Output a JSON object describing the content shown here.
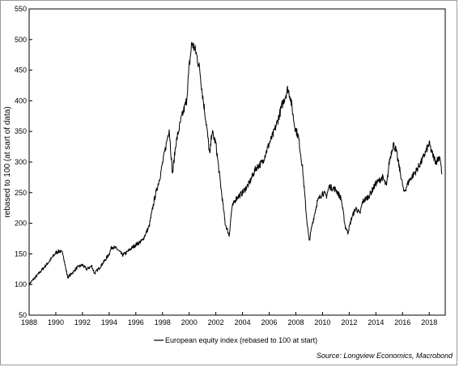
{
  "chart_data": {
    "type": "line",
    "ylabel": "rebased to 100 (at sart of data)",
    "xlabel": "",
    "ylim": [
      50,
      550
    ],
    "xlim": [
      1988,
      2019.2
    ],
    "y_ticks": [
      50,
      100,
      150,
      200,
      250,
      300,
      350,
      400,
      450,
      500,
      550
    ],
    "x_ticks": [
      1988,
      1990,
      1992,
      1994,
      1996,
      1998,
      2000,
      2002,
      2004,
      2006,
      2008,
      2010,
      2012,
      2014,
      2016,
      2018
    ],
    "grid": false,
    "legend_position": "bottom-center",
    "source": "Source: Longview Economics, Macrobond",
    "series": [
      {
        "name": "European equity index (rebased to 100 at start)",
        "color": "#000000",
        "x": [
          1988.0,
          1988.3,
          1988.6,
          1989.0,
          1989.4,
          1989.8,
          1990.0,
          1990.3,
          1990.55,
          1990.75,
          1990.9,
          1991.2,
          1991.6,
          1992.0,
          1992.3,
          1992.7,
          1992.9,
          1993.3,
          1993.7,
          1994.0,
          1994.2,
          1994.6,
          1995.0,
          1995.3,
          1995.6,
          1996.0,
          1996.5,
          1997.0,
          1997.4,
          1997.8,
          1998.2,
          1998.5,
          1998.75,
          1999.0,
          1999.4,
          1999.8,
          2000.0,
          2000.2,
          2000.5,
          2000.8,
          2001.0,
          2001.3,
          2001.55,
          2001.7,
          2002.0,
          2002.4,
          2002.7,
          2003.0,
          2003.2,
          2003.5,
          2004.0,
          2004.5,
          2005.0,
          2005.5,
          2006.0,
          2006.3,
          2006.6,
          2007.0,
          2007.4,
          2007.6,
          2007.9,
          2008.2,
          2008.5,
          2008.8,
          2009.0,
          2009.2,
          2009.6,
          2010.0,
          2010.3,
          2010.5,
          2011.0,
          2011.4,
          2011.7,
          2011.9,
          2012.2,
          2012.5,
          2012.8,
          2013.0,
          2013.5,
          2014.0,
          2014.5,
          2014.8,
          2015.0,
          2015.3,
          2015.5,
          2015.9,
          2016.1,
          2016.5,
          2017.0,
          2017.4,
          2017.8,
          2018.0,
          2018.2,
          2018.5,
          2018.8,
          2018.95
        ],
        "values": [
          100,
          108,
          115,
          125,
          135,
          146,
          152,
          155,
          150,
          125,
          112,
          118,
          128,
          132,
          125,
          130,
          118,
          128,
          140,
          150,
          162,
          158,
          148,
          152,
          158,
          165,
          172,
          195,
          240,
          275,
          320,
          355,
          280,
          330,
          370,
          400,
          455,
          495,
          480,
          450,
          410,
          360,
          310,
          350,
          330,
          255,
          200,
          180,
          225,
          240,
          250,
          265,
          290,
          300,
          330,
          345,
          365,
          395,
          420,
          405,
          360,
          340,
          290,
          210,
          170,
          195,
          235,
          250,
          245,
          260,
          255,
          240,
          195,
          185,
          210,
          225,
          215,
          235,
          245,
          265,
          275,
          260,
          300,
          330,
          320,
          275,
          250,
          270,
          285,
          300,
          320,
          330,
          315,
          300,
          310,
          280
        ]
      }
    ]
  }
}
